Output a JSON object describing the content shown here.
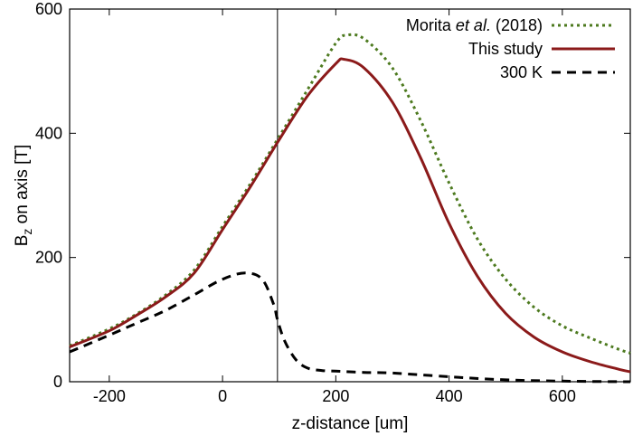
{
  "chart_data": {
    "type": "line",
    "xlabel": "z-distance [um]",
    "ylabel_main": "B",
    "ylabel_sub": "z",
    "ylabel_rest": " on axis [T]",
    "xlim": [
      -270,
      720
    ],
    "ylim": [
      0,
      600
    ],
    "xticks": [
      -200,
      0,
      200,
      400,
      600
    ],
    "yticks": [
      0,
      200,
      400,
      600
    ],
    "legend_position": "top-right",
    "vline_x": 97,
    "series": [
      {
        "name_parts": [
          "Morita ",
          "et al.",
          " (2018)"
        ],
        "color": "#4d7a1f",
        "style": "dotted",
        "x": [
          -270,
          -200,
          -150,
          -100,
          -50,
          0,
          50,
          97,
          150,
          200,
          220,
          250,
          300,
          350,
          400,
          450,
          500,
          550,
          600,
          650,
          700,
          720
        ],
        "y": [
          58,
          85,
          110,
          140,
          180,
          250,
          320,
          390,
          470,
          545,
          558,
          552,
          505,
          420,
          320,
          230,
          165,
          120,
          90,
          70,
          52,
          46
        ]
      },
      {
        "name_parts": [
          "This study"
        ],
        "color": "#8b1a1a",
        "style": "solid",
        "x": [
          -270,
          -200,
          -150,
          -100,
          -50,
          0,
          50,
          97,
          150,
          200,
          215,
          250,
          300,
          350,
          400,
          450,
          500,
          550,
          600,
          650,
          700,
          720
        ],
        "y": [
          56,
          82,
          108,
          137,
          175,
          245,
          315,
          385,
          460,
          512,
          519,
          505,
          450,
          360,
          255,
          170,
          110,
          72,
          48,
          32,
          20,
          16
        ]
      },
      {
        "name_parts": [
          "300 K"
        ],
        "color": "#000000",
        "style": "dashed",
        "x": [
          -270,
          -200,
          -150,
          -100,
          -50,
          0,
          40,
          70,
          90,
          97,
          110,
          130,
          150,
          175,
          200,
          250,
          300,
          400,
          500,
          600,
          720
        ],
        "y": [
          48,
          75,
          95,
          115,
          140,
          165,
          175,
          165,
          125,
          100,
          65,
          35,
          22,
          18,
          17,
          15,
          14,
          8,
          3,
          1,
          0
        ]
      }
    ]
  }
}
